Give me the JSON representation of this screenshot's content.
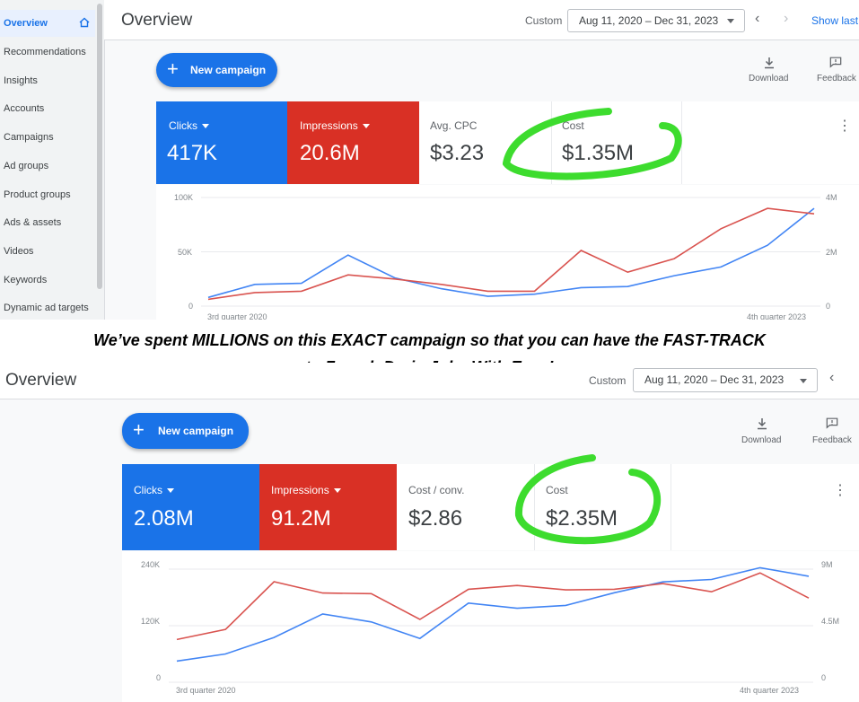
{
  "top": {
    "sidebar": {
      "items": [
        "Overview",
        "Recommendations",
        "Insights",
        "Accounts",
        "Campaigns",
        "Ad groups",
        "Product groups",
        "Ads & assets",
        "Videos",
        "Keywords",
        "Dynamic ad targets"
      ]
    },
    "header": {
      "title": "Overview",
      "custom_label": "Custom",
      "date_range": "Aug 11, 2020 – Dec 31, 2023",
      "show_last": "Show last"
    },
    "new_campaign": "New campaign",
    "download": "Download",
    "feedback": "Feedback",
    "metrics": [
      {
        "label": "Clicks",
        "value": "417K"
      },
      {
        "label": "Impressions",
        "value": "20.6M"
      },
      {
        "label": "Avg. CPC",
        "value": "$3.23"
      },
      {
        "label": "Cost",
        "value": "$1.35M"
      }
    ],
    "chart_data": {
      "type": "line",
      "left_axis_ticks": [
        "100K",
        "50K",
        "0"
      ],
      "right_axis_ticks": [
        "4M",
        "2M",
        "0"
      ],
      "x_tick_labels": [
        "3rd quarter 2020",
        "4th quarter 2023"
      ],
      "series": [
        {
          "color": "#4285f4",
          "axis": "left",
          "values": [
            8000,
            20000,
            21000,
            47000,
            26000,
            16000,
            9000,
            11000,
            17000,
            18000,
            28000,
            36000,
            56000,
            90000
          ]
        },
        {
          "axis": "right",
          "color": "#d9534f",
          "values": [
            250000,
            500000,
            550000,
            1150000,
            1000000,
            800000,
            550000,
            550000,
            2050000,
            1250000,
            1750000,
            2850000,
            3600000,
            3400000
          ]
        }
      ],
      "left_ylim": [
        0,
        100000
      ],
      "right_ylim": [
        0,
        4000000
      ]
    }
  },
  "caption": {
    "line1": "We’ve spent MILLIONS on this EXACT campaign so that you can have the FAST-TRACK",
    "line2": "to French Drain Jobs With Ease!"
  },
  "bottom": {
    "header": {
      "title": "Overview",
      "custom_label": "Custom",
      "date_range": "Aug 11, 2020 – Dec 31, 2023"
    },
    "new_campaign": "New campaign",
    "download": "Download",
    "feedback": "Feedback",
    "metrics": [
      {
        "label": "Clicks",
        "value": "2.08M"
      },
      {
        "label": "Impressions",
        "value": "91.2M"
      },
      {
        "label": "Cost / conv.",
        "value": "$2.86"
      },
      {
        "label": "Cost",
        "value": "$2.35M"
      }
    ],
    "chart_data": {
      "type": "line",
      "left_axis_ticks": [
        "240K",
        "120K",
        "0"
      ],
      "right_axis_ticks": [
        "9M",
        "4.5M",
        "0"
      ],
      "x_tick_labels": [
        "3rd quarter 2020",
        "4th quarter 2023"
      ],
      "series": [
        {
          "color": "#4285f4",
          "axis": "left",
          "values": [
            45000,
            60000,
            95000,
            145000,
            128000,
            93000,
            168000,
            157000,
            163000,
            190000,
            213000,
            218000,
            243000,
            225000
          ]
        },
        {
          "axis": "right",
          "color": "#d9534f",
          "values": [
            3400000,
            4200000,
            8000000,
            7100000,
            7050000,
            5000000,
            7400000,
            7700000,
            7350000,
            7400000,
            7850000,
            7200000,
            8700000,
            6700000
          ]
        }
      ],
      "left_ylim": [
        0,
        240000
      ],
      "right_ylim": [
        0,
        9000000
      ]
    }
  },
  "colors": {
    "blue": "#1a73e8",
    "red": "#d93025",
    "highlight": "#3ddc2e"
  }
}
